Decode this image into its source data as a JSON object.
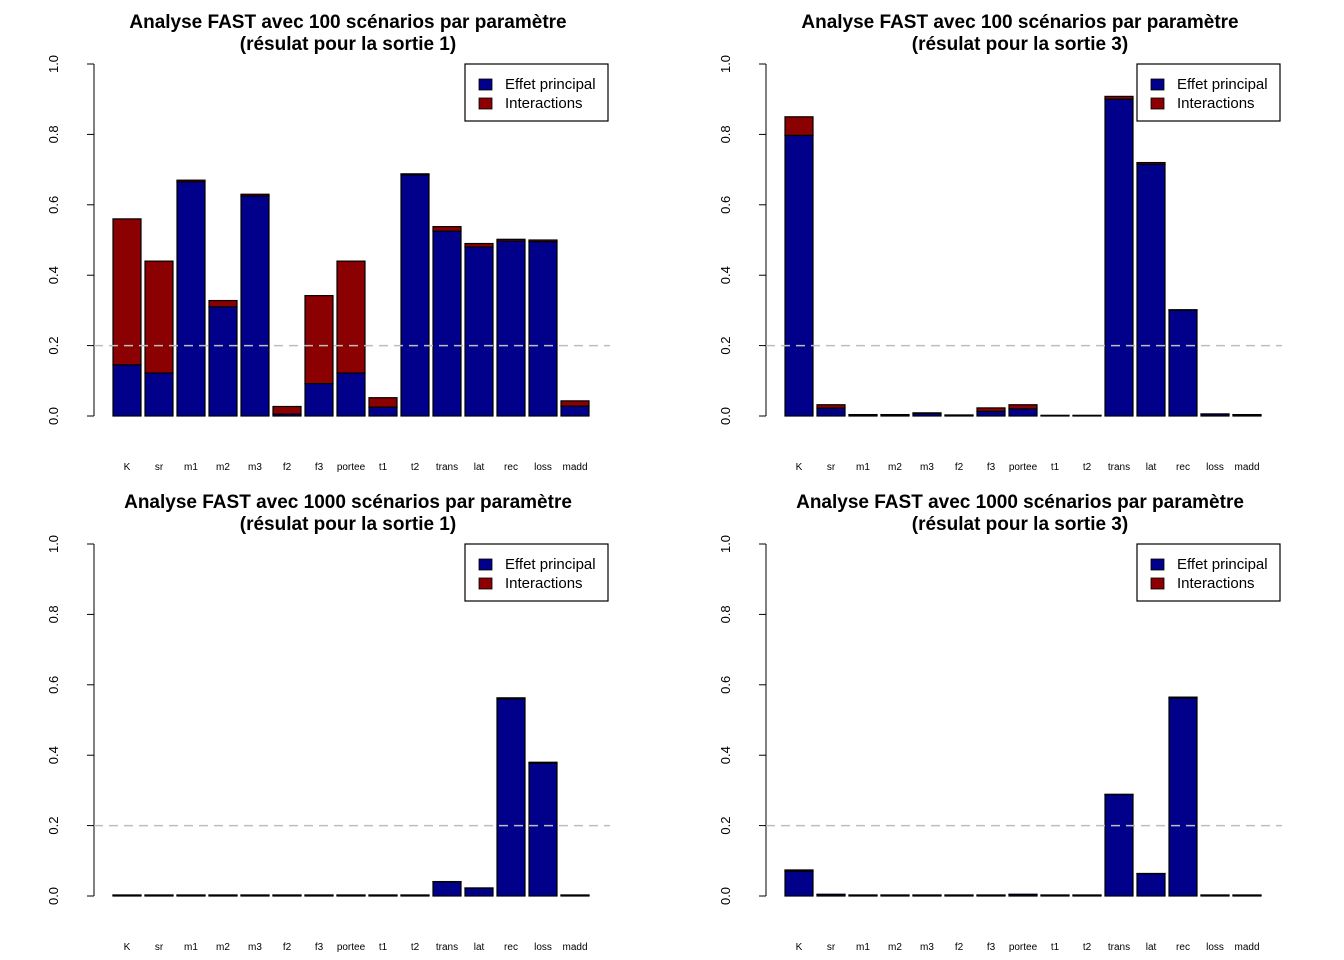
{
  "chart_data": [
    {
      "type": "bar",
      "stacked": true,
      "title": [
        "Analyse FAST avec 100 scénarios par paramètre",
        "(résulat pour la sortie 1)"
      ],
      "categories": [
        "K",
        "sr",
        "m1",
        "m2",
        "m3",
        "f2",
        "f3",
        "portee",
        "t1",
        "t2",
        "trans",
        "lat",
        "rec",
        "loss",
        "madd"
      ],
      "series": [
        {
          "name": "Effet principal",
          "color": "#00008B",
          "values": [
            0.145,
            0.122,
            0.665,
            0.31,
            0.625,
            0.005,
            0.092,
            0.122,
            0.025,
            0.685,
            0.525,
            0.48,
            0.497,
            0.495,
            0.028
          ]
        },
        {
          "name": "Interactions",
          "color": "#8B0000",
          "values": [
            0.415,
            0.318,
            0.005,
            0.018,
            0.005,
            0.022,
            0.25,
            0.318,
            0.027,
            0.003,
            0.013,
            0.01,
            0.005,
            0.005,
            0.015
          ]
        }
      ],
      "ylim": [
        0,
        1.0
      ],
      "yticks": [
        "0.0",
        "0.2",
        "0.4",
        "0.6",
        "0.8",
        "1.0"
      ],
      "reference_line": 0.2,
      "legend_position": "top-right",
      "grid": false
    },
    {
      "type": "bar",
      "stacked": true,
      "title": [
        "Analyse FAST avec 100 scénarios par paramètre",
        "(résulat pour la sortie 3)"
      ],
      "categories": [
        "K",
        "sr",
        "m1",
        "m2",
        "m3",
        "f2",
        "f3",
        "portee",
        "t1",
        "t2",
        "trans",
        "lat",
        "rec",
        "loss",
        "madd"
      ],
      "series": [
        {
          "name": "Effet principal",
          "color": "#00008B",
          "values": [
            0.797,
            0.022,
            0.003,
            0.003,
            0.007,
            0.002,
            0.013,
            0.02,
            0.001,
            0.001,
            0.9,
            0.715,
            0.3,
            0.005,
            0.003
          ]
        },
        {
          "name": "Interactions",
          "color": "#8B0000",
          "values": [
            0.053,
            0.01,
            0.001,
            0.001,
            0.002,
            0.001,
            0.01,
            0.012,
            0.001,
            0.001,
            0.008,
            0.005,
            0.002,
            0.001,
            0.001
          ]
        }
      ],
      "ylim": [
        0,
        1.0
      ],
      "yticks": [
        "0.0",
        "0.2",
        "0.4",
        "0.6",
        "0.8",
        "1.0"
      ],
      "reference_line": 0.2,
      "legend_position": "top-right",
      "grid": false
    },
    {
      "type": "bar",
      "stacked": true,
      "title": [
        "Analyse FAST avec 1000 scénarios par paramètre",
        "(résulat pour la sortie 1)"
      ],
      "categories": [
        "K",
        "sr",
        "m1",
        "m2",
        "m3",
        "f2",
        "f3",
        "portee",
        "t1",
        "t2",
        "trans",
        "lat",
        "rec",
        "loss",
        "madd"
      ],
      "series": [
        {
          "name": "Effet principal",
          "color": "#00008B",
          "values": [
            0.002,
            0.002,
            0.002,
            0.002,
            0.002,
            0.002,
            0.002,
            0.002,
            0.002,
            0.002,
            0.04,
            0.022,
            0.56,
            0.377,
            0.002
          ]
        },
        {
          "name": "Interactions",
          "color": "#8B0000",
          "values": [
            0.001,
            0.001,
            0.001,
            0.001,
            0.001,
            0.001,
            0.001,
            0.001,
            0.001,
            0.001,
            0.001,
            0.001,
            0.003,
            0.003,
            0.001
          ]
        }
      ],
      "ylim": [
        0,
        1.0
      ],
      "yticks": [
        "0.0",
        "0.2",
        "0.4",
        "0.6",
        "0.8",
        "1.0"
      ],
      "reference_line": 0.2,
      "legend_position": "top-right",
      "grid": false
    },
    {
      "type": "bar",
      "stacked": true,
      "title": [
        "Analyse FAST avec 1000 scénarios par paramètre",
        "(résulat pour la sortie 3)"
      ],
      "categories": [
        "K",
        "sr",
        "m1",
        "m2",
        "m3",
        "f2",
        "f3",
        "portee",
        "t1",
        "t2",
        "trans",
        "lat",
        "rec",
        "loss",
        "madd"
      ],
      "series": [
        {
          "name": "Effet principal",
          "color": "#00008B",
          "values": [
            0.07,
            0.004,
            0.002,
            0.002,
            0.002,
            0.002,
            0.002,
            0.004,
            0.002,
            0.002,
            0.288,
            0.063,
            0.562,
            0.002,
            0.002
          ]
        },
        {
          "name": "Interactions",
          "color": "#8B0000",
          "values": [
            0.004,
            0.001,
            0.001,
            0.001,
            0.001,
            0.001,
            0.001,
            0.001,
            0.001,
            0.001,
            0.001,
            0.001,
            0.003,
            0.001,
            0.001
          ]
        }
      ],
      "ylim": [
        0,
        1.0
      ],
      "yticks": [
        "0.0",
        "0.2",
        "0.4",
        "0.6",
        "0.8",
        "1.0"
      ],
      "reference_line": 0.2,
      "legend_position": "top-right",
      "grid": false
    }
  ]
}
